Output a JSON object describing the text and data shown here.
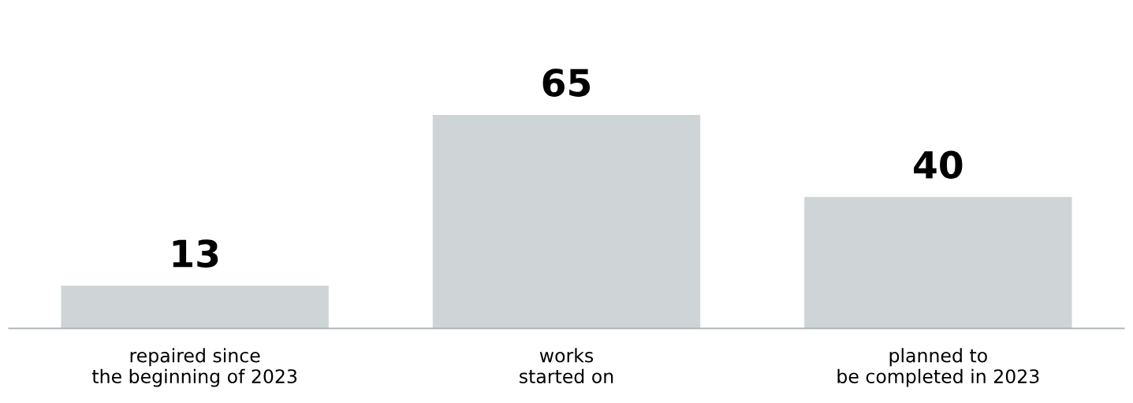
{
  "chart_data": {
    "type": "bar",
    "categories": [
      "repaired since\nthe beginning of 2023",
      "works\nstarted on",
      "planned to\nbe completed in 2023"
    ],
    "values": [
      13,
      65,
      40
    ],
    "color": "#cfd4d7",
    "data_labels": true,
    "grid": false,
    "legend": false
  }
}
